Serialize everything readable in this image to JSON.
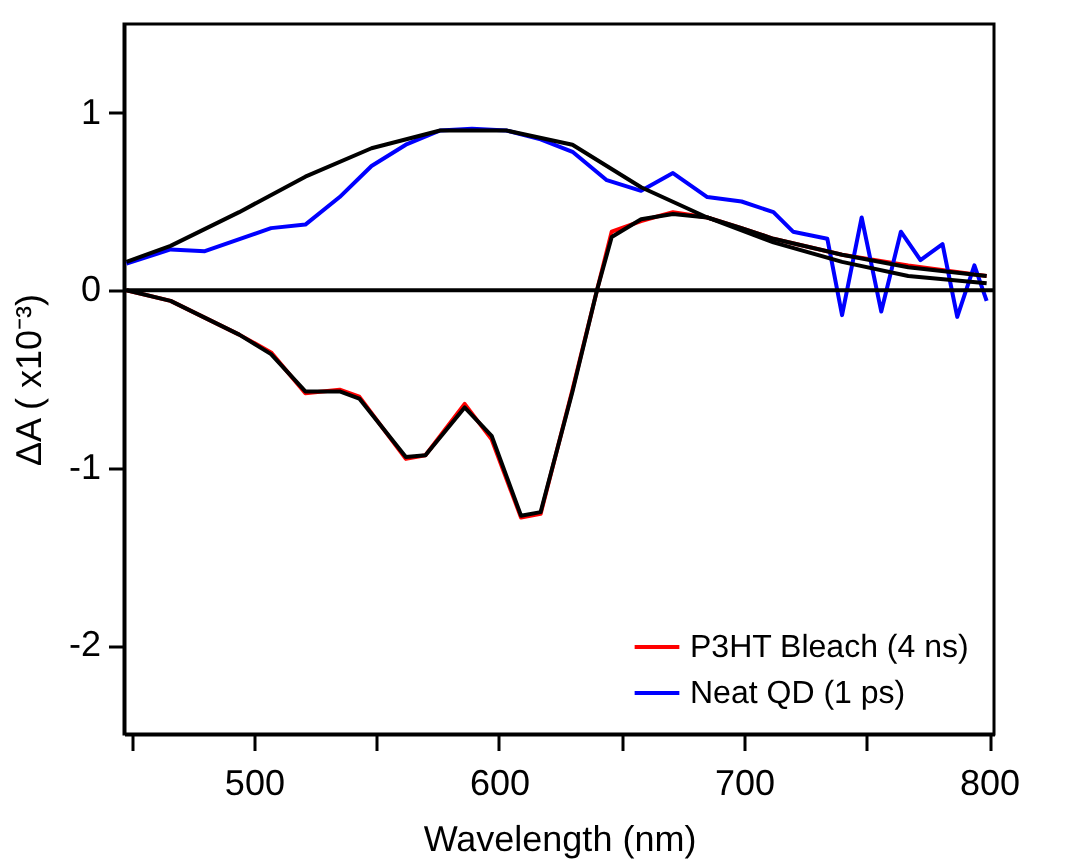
{
  "chart_data": {
    "type": "line",
    "xlabel": "Wavelength (nm)",
    "ylabel": "ΔA ( x10⁻³)",
    "xlim": [
      447,
      802
    ],
    "ylim": [
      -2.5,
      1.5
    ],
    "xticks": [
      {
        "value": 450,
        "label": null
      },
      500,
      {
        "value": 550,
        "label": null
      },
      600,
      {
        "value": 650,
        "label": null
      },
      700,
      {
        "value": 750,
        "label": null
      },
      800
    ],
    "yticks": [
      -2,
      -1,
      0,
      1
    ],
    "legend": "bottom right",
    "line_style": "solid",
    "marker": "none",
    "ref_lines": [
      {
        "axis": "y",
        "value": 0,
        "color": "#000000"
      }
    ],
    "series": [
      {
        "name": "P3HT Bleach (4 ns)",
        "color": "#ff0000",
        "x": [
          448,
          466,
          494,
          507,
          521,
          535,
          543,
          562,
          570,
          586,
          597,
          609,
          617,
          630,
          640,
          646,
          658,
          671,
          685,
          699,
          712,
          740,
          767,
          799
        ],
        "values": [
          0.0,
          -0.06,
          -0.25,
          -0.35,
          -0.58,
          -0.56,
          -0.6,
          -0.95,
          -0.93,
          -0.64,
          -0.84,
          -1.28,
          -1.26,
          -0.56,
          0.0,
          0.33,
          0.39,
          0.44,
          0.41,
          0.35,
          0.29,
          0.2,
          0.14,
          0.08
        ]
      },
      {
        "name": "Neat QD (1 ps)",
        "color": "#0000ff",
        "x": [
          448,
          466,
          480,
          507,
          521,
          535,
          548,
          562,
          576,
          589,
          603,
          617,
          630,
          644,
          658,
          671,
          685,
          699,
          712,
          720,
          734,
          740,
          748,
          756,
          764,
          772,
          781,
          787,
          794,
          799
        ],
        "values": [
          0.15,
          0.23,
          0.22,
          0.35,
          0.37,
          0.525,
          0.7,
          0.82,
          0.9,
          0.91,
          0.9,
          0.85,
          0.78,
          0.62,
          0.56,
          0.66,
          0.525,
          0.5,
          0.44,
          0.33,
          0.29,
          -0.14,
          0.41,
          -0.12,
          0.33,
          0.17,
          0.26,
          -0.15,
          0.14,
          -0.06
        ]
      },
      {
        "color": "#000000",
        "x": [
          448,
          466,
          494,
          521,
          548,
          576,
          603,
          630,
          658,
          685,
          712,
          740,
          767,
          799
        ],
        "values": [
          0.16,
          0.25,
          0.44,
          0.64,
          0.8,
          0.9,
          0.9,
          0.82,
          0.58,
          0.41,
          0.27,
          0.16,
          0.08,
          0.04
        ]
      },
      {
        "color": "#000000",
        "x": [
          448,
          466,
          494,
          507,
          521,
          535,
          543,
          562,
          570,
          586,
          597,
          609,
          617,
          630,
          640,
          646,
          658,
          671,
          685,
          699,
          712,
          740,
          767,
          799
        ],
        "values": [
          0.0,
          -0.06,
          -0.25,
          -0.36,
          -0.57,
          -0.57,
          -0.61,
          -0.94,
          -0.93,
          -0.66,
          -0.82,
          -1.27,
          -1.25,
          -0.57,
          0.0,
          0.3,
          0.4,
          0.43,
          0.41,
          0.35,
          0.29,
          0.2,
          0.13,
          0.08
        ]
      }
    ]
  }
}
